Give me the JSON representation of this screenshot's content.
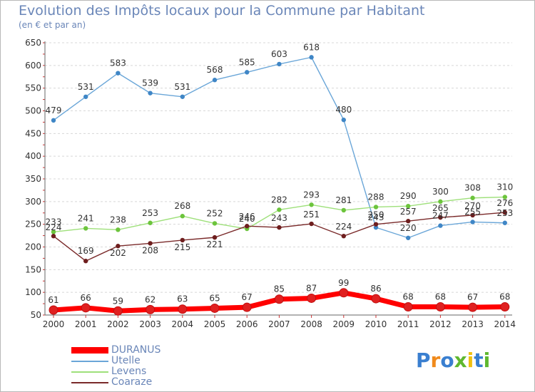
{
  "title": "Evolution des Impôts locaux pour la Commune par Habitant",
  "subtitle": "(en € et par an)",
  "logo": {
    "text": "Proxiti",
    "colors": [
      "#3a7fd0",
      "#f08a1c",
      "#3a7fd0",
      "#5fb82f",
      "#f0c010",
      "#3a7fd0",
      "#5fb82f"
    ]
  },
  "chart_data": {
    "type": "line",
    "title": "Evolution des Impôts locaux pour la Commune par Habitant",
    "subtitle": "(en € et par an)",
    "xlabel": "",
    "ylabel": "",
    "x": [
      2000,
      2001,
      2002,
      2003,
      2004,
      2005,
      2006,
      2007,
      2008,
      2009,
      2010,
      2011,
      2012,
      2013,
      2014
    ],
    "ylim": [
      50,
      650
    ],
    "yticks": [
      50,
      100,
      150,
      200,
      250,
      300,
      350,
      400,
      450,
      500,
      550,
      600,
      650
    ],
    "grid": "horizontal dashed",
    "legend_position": "bottom-left",
    "series": [
      {
        "name": "DURANUS",
        "color": "#ff0000",
        "marker": "#e02020",
        "width": 7,
        "values": [
          61,
          66,
          59,
          62,
          63,
          65,
          67,
          85,
          87,
          99,
          86,
          68,
          68,
          67,
          68
        ]
      },
      {
        "name": "Utelle",
        "color": "#6aa6d8",
        "marker": "#3f86c6",
        "width": 1.4,
        "values": [
          479,
          531,
          583,
          539,
          531,
          568,
          585,
          603,
          618,
          480,
          243,
          220,
          247,
          255,
          253
        ]
      },
      {
        "name": "Levens",
        "color": "#9ee07a",
        "marker": "#6cc43c",
        "width": 1.4,
        "values": [
          233,
          241,
          238,
          253,
          268,
          252,
          240,
          282,
          293,
          281,
          288,
          290,
          300,
          308,
          310
        ]
      },
      {
        "name": "Coaraze",
        "color": "#7a2a2a",
        "marker": "#6e1e1e",
        "width": 1.4,
        "values": [
          224,
          169,
          202,
          208,
          215,
          221,
          246,
          243,
          251,
          224,
          250,
          257,
          265,
          270,
          276
        ]
      }
    ]
  }
}
